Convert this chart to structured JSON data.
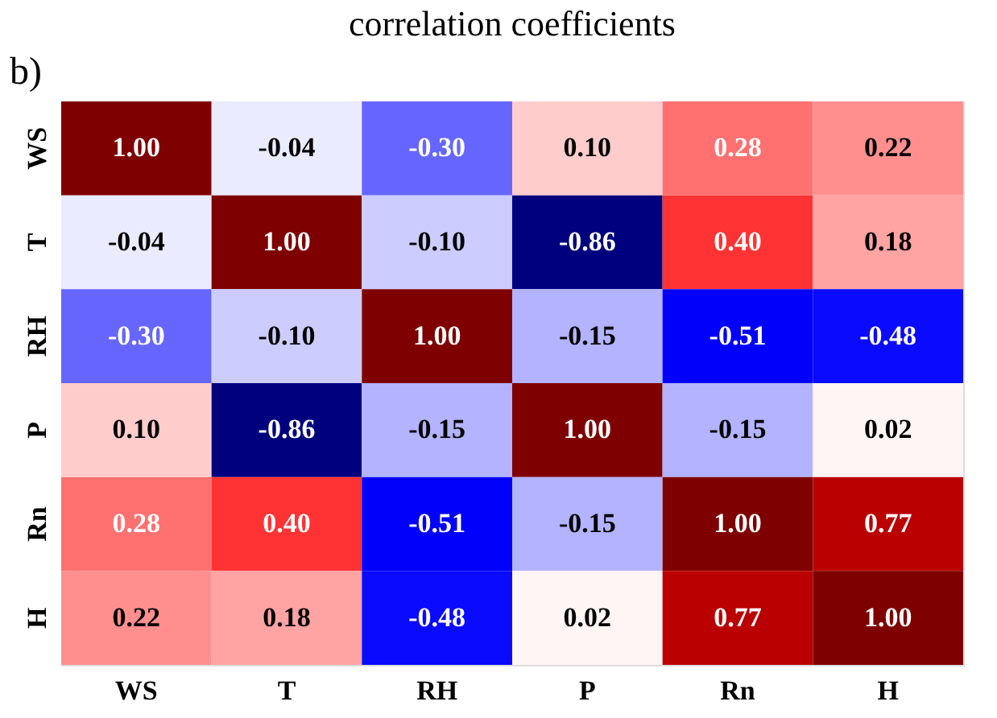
{
  "chart_data": {
    "type": "heatmap",
    "title": "correlation coefficients",
    "annotations": [
      "b)"
    ],
    "categories": [
      "WS",
      "T",
      "RH",
      "P",
      "Rn",
      "H"
    ],
    "y_categories": [
      "WS",
      "T",
      "RH",
      "P",
      "Rn",
      "H"
    ],
    "cells": [
      [
        1.0,
        -0.04,
        -0.3,
        0.1,
        0.28,
        0.22
      ],
      [
        -0.04,
        1.0,
        -0.1,
        -0.86,
        0.4,
        0.18
      ],
      [
        -0.3,
        -0.1,
        1.0,
        -0.15,
        -0.51,
        -0.48
      ],
      [
        0.1,
        -0.86,
        -0.15,
        1.0,
        -0.15,
        0.02
      ],
      [
        0.28,
        0.4,
        -0.51,
        -0.15,
        1.0,
        0.77
      ],
      [
        0.22,
        0.18,
        -0.48,
        0.02,
        0.77,
        1.0
      ]
    ],
    "cell_labels": [
      [
        "1.00",
        "-0.04",
        "-0.30",
        "0.10",
        "0.28",
        "0.22"
      ],
      [
        "-0.04",
        "1.00",
        "-0.10",
        "-0.86",
        "0.40",
        "0.18"
      ],
      [
        "-0.30",
        "-0.10",
        "1.00",
        "-0.15",
        "-0.51",
        "-0.48"
      ],
      [
        "0.10",
        "-0.86",
        "-0.15",
        "1.00",
        "-0.15",
        "0.02"
      ],
      [
        "0.28",
        "0.40",
        "-0.51",
        "-0.15",
        "1.00",
        "0.77"
      ],
      [
        "0.22",
        "0.18",
        "-0.48",
        "0.02",
        "0.77",
        "1.00"
      ]
    ]
  }
}
